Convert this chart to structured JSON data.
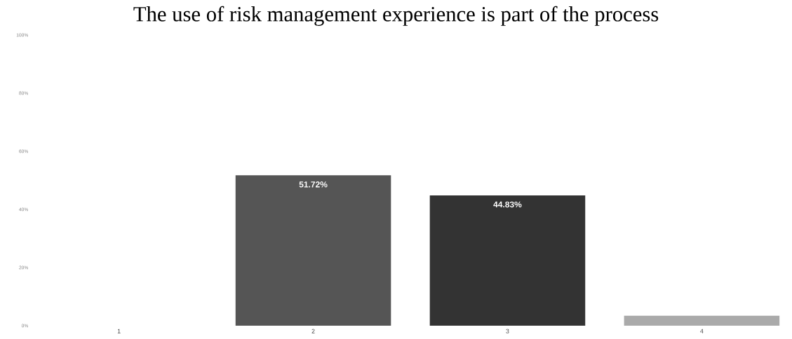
{
  "chart_data": {
    "type": "bar",
    "title": "The use of risk management experience is part of the process",
    "categories": [
      "1",
      "2",
      "3",
      "4"
    ],
    "values": [
      0,
      51.72,
      44.83,
      3.4
    ],
    "colors": [
      "#555555",
      "#555555",
      "#333333",
      "#aaaaaa"
    ],
    "value_labels": [
      null,
      "51.72%",
      "44.83%",
      null
    ],
    "ylim": [
      0,
      100
    ],
    "yticks": [
      {
        "value": 0,
        "label": "0%"
      },
      {
        "value": 20,
        "label": "20%"
      },
      {
        "value": 40,
        "label": "40%"
      },
      {
        "value": 60,
        "label": "60%"
      },
      {
        "value": 80,
        "label": "80%"
      },
      {
        "value": 100,
        "label": "100%"
      }
    ],
    "grid": false
  }
}
